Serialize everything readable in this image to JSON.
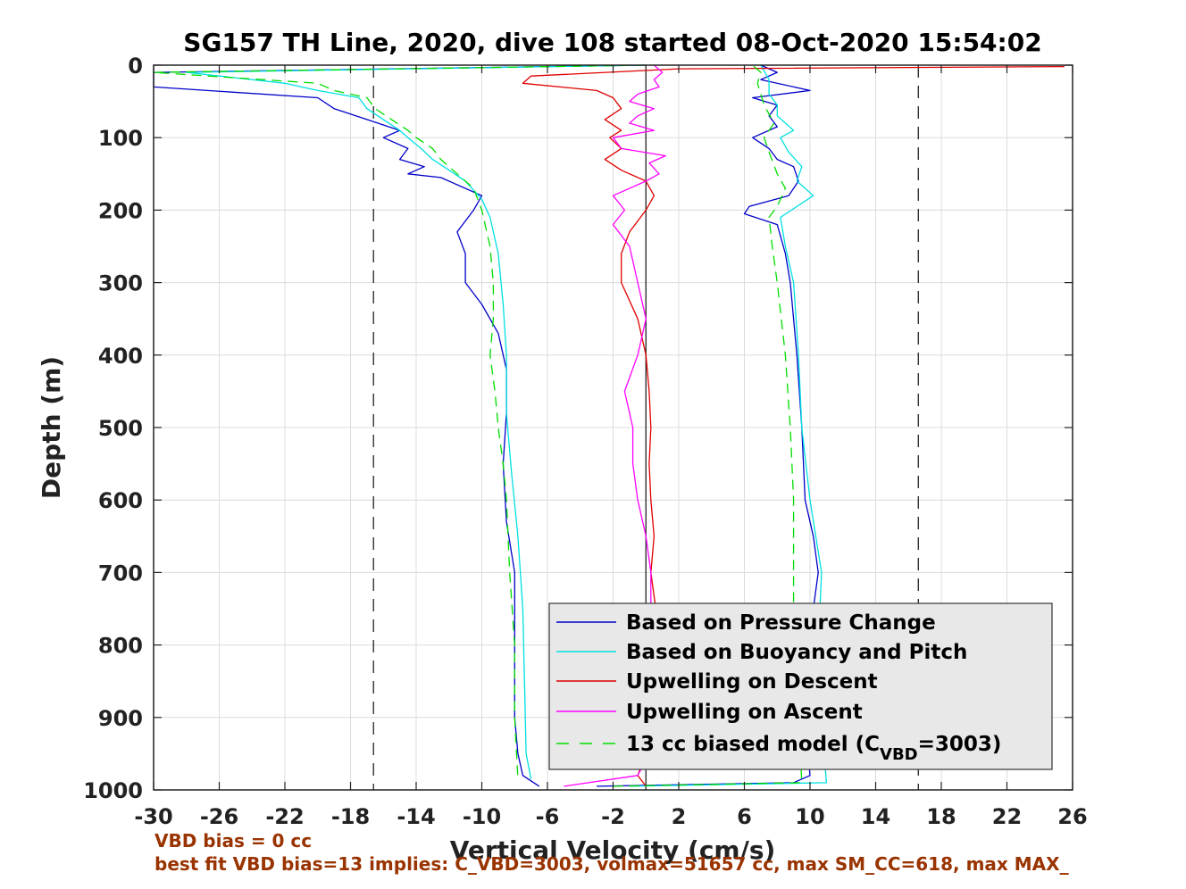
{
  "chart_data": {
    "type": "line",
    "title": "SG157 TH Line, 2020, dive 108 started 08-Oct-2020 15:54:02",
    "xlabel": "Vertical Velocity (cm/s)",
    "ylabel": "Depth (m)",
    "xlim": [
      -30,
      26
    ],
    "ylim": [
      0,
      1000
    ],
    "y_reversed": true,
    "grid": true,
    "legend_position": "bottom-right",
    "x_ticks": [
      "-30",
      "-26",
      "-22",
      "-18",
      "-14",
      "-10",
      "-6",
      "-2",
      "2",
      "6",
      "10",
      "14",
      "18",
      "22",
      "26"
    ],
    "y_ticks": [
      "0",
      "100",
      "200",
      "300",
      "400",
      "500",
      "600",
      "700",
      "800",
      "900",
      "1000"
    ],
    "reference_lines": [
      {
        "style": "dashed",
        "x": -16.6
      },
      {
        "style": "solid",
        "x": 0
      },
      {
        "style": "dashed",
        "x": 16.6
      }
    ],
    "series": [
      {
        "name": "Based on Pressure Change",
        "color": "#0000c8",
        "style": "solid",
        "descent": [
          [
            0,
            0
          ],
          [
            10,
            -30
          ],
          [
            30,
            -30
          ],
          [
            45,
            -20
          ],
          [
            60,
            -19
          ],
          [
            75,
            -17
          ],
          [
            90,
            -15
          ],
          [
            100,
            -16
          ],
          [
            115,
            -14.5
          ],
          [
            130,
            -15
          ],
          [
            140,
            -13.5
          ],
          [
            150,
            -14.5
          ],
          [
            155,
            -12.5
          ],
          [
            165,
            -11.5
          ],
          [
            180,
            -10
          ],
          [
            200,
            -10.5
          ],
          [
            230,
            -11.5
          ],
          [
            260,
            -11
          ],
          [
            300,
            -11
          ],
          [
            330,
            -10
          ],
          [
            370,
            -9
          ],
          [
            420,
            -8.5
          ],
          [
            480,
            -8.5
          ],
          [
            550,
            -8.7
          ],
          [
            630,
            -8.5
          ],
          [
            700,
            -8
          ],
          [
            800,
            -8
          ],
          [
            900,
            -8
          ],
          [
            950,
            -7.8
          ],
          [
            980,
            -7.5
          ],
          [
            995,
            -6.5
          ]
        ],
        "ascent": [
          [
            995,
            -3
          ],
          [
            990,
            9
          ],
          [
            980,
            10
          ],
          [
            900,
            9.7
          ],
          [
            800,
            9.5
          ],
          [
            750,
            10.2
          ],
          [
            700,
            10.5
          ],
          [
            650,
            10.2
          ],
          [
            600,
            9.7
          ],
          [
            500,
            9.5
          ],
          [
            400,
            9.2
          ],
          [
            300,
            8.8
          ],
          [
            260,
            8.5
          ],
          [
            220,
            8
          ],
          [
            205,
            6
          ],
          [
            195,
            6.3
          ],
          [
            180,
            8.7
          ],
          [
            160,
            9.3
          ],
          [
            140,
            9
          ],
          [
            130,
            8
          ],
          [
            115,
            7.5
          ],
          [
            100,
            6.5
          ],
          [
            85,
            8
          ],
          [
            70,
            7.5
          ],
          [
            55,
            8
          ],
          [
            45,
            6.5
          ],
          [
            35,
            10
          ],
          [
            20,
            7
          ],
          [
            10,
            8
          ],
          [
            0,
            7
          ]
        ]
      },
      {
        "name": "Based on Buoyancy and Pitch",
        "color": "#00e0e0",
        "style": "solid",
        "descent": [
          [
            0,
            0
          ],
          [
            10,
            -28
          ],
          [
            25,
            -22
          ],
          [
            35,
            -20
          ],
          [
            45,
            -17.5
          ],
          [
            60,
            -17
          ],
          [
            75,
            -16
          ],
          [
            90,
            -15
          ],
          [
            100,
            -14.5
          ],
          [
            115,
            -13.7
          ],
          [
            130,
            -13
          ],
          [
            145,
            -12
          ],
          [
            160,
            -11
          ],
          [
            185,
            -10
          ],
          [
            210,
            -9.5
          ],
          [
            260,
            -9
          ],
          [
            330,
            -8.7
          ],
          [
            400,
            -8.5
          ],
          [
            480,
            -8.5
          ],
          [
            560,
            -8.2
          ],
          [
            650,
            -7.8
          ],
          [
            750,
            -7.5
          ],
          [
            850,
            -7.4
          ],
          [
            950,
            -7.3
          ],
          [
            985,
            -7
          ]
        ],
        "ascent": [
          [
            995,
            -1
          ],
          [
            990,
            11
          ],
          [
            900,
            10.7
          ],
          [
            800,
            10.5
          ],
          [
            700,
            10.7
          ],
          [
            600,
            10
          ],
          [
            500,
            9.5
          ],
          [
            400,
            9.3
          ],
          [
            300,
            9
          ],
          [
            250,
            8.5
          ],
          [
            210,
            8.2
          ],
          [
            180,
            10.2
          ],
          [
            160,
            9.2
          ],
          [
            140,
            9.5
          ],
          [
            120,
            8.7
          ],
          [
            100,
            8.2
          ],
          [
            90,
            9
          ],
          [
            70,
            8
          ],
          [
            55,
            8
          ],
          [
            40,
            7.5
          ],
          [
            20,
            7.5
          ],
          [
            0,
            7
          ]
        ]
      },
      {
        "name": "Upwelling on Descent",
        "color": "#e00000",
        "style": "solid",
        "descent": [
          [
            2,
            25.5
          ],
          [
            5,
            2
          ],
          [
            15,
            -7
          ],
          [
            25,
            -7.5
          ],
          [
            35,
            -3
          ],
          [
            45,
            -2
          ],
          [
            60,
            -1.5
          ],
          [
            75,
            -2.5
          ],
          [
            90,
            -1.5
          ],
          [
            100,
            -2.2
          ],
          [
            115,
            -1.5
          ],
          [
            130,
            -2.5
          ],
          [
            145,
            -1.5
          ],
          [
            160,
            0
          ],
          [
            180,
            0.5
          ],
          [
            200,
            0
          ],
          [
            230,
            -1
          ],
          [
            260,
            -1.5
          ],
          [
            300,
            -1.5
          ],
          [
            350,
            -0.5
          ],
          [
            400,
            0
          ],
          [
            450,
            0.2
          ],
          [
            500,
            0.3
          ],
          [
            550,
            0.2
          ],
          [
            600,
            0.3
          ],
          [
            650,
            0.5
          ],
          [
            700,
            0.3
          ],
          [
            750,
            0.6
          ],
          [
            800,
            0.3
          ],
          [
            850,
            0.2
          ],
          [
            900,
            0
          ],
          [
            950,
            0
          ],
          [
            980,
            -0.5
          ],
          [
            995,
            0
          ]
        ]
      },
      {
        "name": "Upwelling on Ascent",
        "color": "#ff00ff",
        "style": "solid",
        "ascent": [
          [
            995,
            -5
          ],
          [
            980,
            -0.5
          ],
          [
            950,
            0.2
          ],
          [
            900,
            0.3
          ],
          [
            850,
            0.4
          ],
          [
            800,
            0.2
          ],
          [
            750,
            0.3
          ],
          [
            700,
            0.3
          ],
          [
            650,
            0
          ],
          [
            600,
            -0.5
          ],
          [
            550,
            -0.8
          ],
          [
            500,
            -0.8
          ],
          [
            450,
            -1.3
          ],
          [
            400,
            -0.5
          ],
          [
            350,
            0
          ],
          [
            300,
            -0.5
          ],
          [
            250,
            -1
          ],
          [
            220,
            -2
          ],
          [
            200,
            -1.3
          ],
          [
            180,
            -2
          ],
          [
            160,
            0
          ],
          [
            150,
            0.8
          ],
          [
            135,
            0.2
          ],
          [
            125,
            1.2
          ],
          [
            115,
            -1.5
          ],
          [
            100,
            -2
          ],
          [
            90,
            0.5
          ],
          [
            80,
            -1
          ],
          [
            70,
            -0.5
          ],
          [
            60,
            0.5
          ],
          [
            50,
            -1
          ],
          [
            40,
            -0.5
          ],
          [
            30,
            0.8
          ],
          [
            20,
            0.5
          ],
          [
            10,
            1
          ],
          [
            0,
            0.5
          ]
        ]
      },
      {
        "name": "13 cc biased model (C",
        "name_sub": "VBD",
        "name_tail": "=3003)",
        "color": "#00dd00",
        "style": "dashed",
        "descent": [
          [
            0,
            0
          ],
          [
            10,
            -30
          ],
          [
            25,
            -20
          ],
          [
            35,
            -19
          ],
          [
            45,
            -17
          ],
          [
            60,
            -16.5
          ],
          [
            75,
            -15.5
          ],
          [
            90,
            -14.5
          ],
          [
            100,
            -14
          ],
          [
            115,
            -13
          ],
          [
            130,
            -12.5
          ],
          [
            150,
            -11.5
          ],
          [
            170,
            -10.5
          ],
          [
            200,
            -10
          ],
          [
            250,
            -9.5
          ],
          [
            300,
            -9.3
          ],
          [
            350,
            -9.3
          ],
          [
            400,
            -9.5
          ],
          [
            450,
            -9.2
          ],
          [
            500,
            -9
          ],
          [
            550,
            -8.7
          ],
          [
            600,
            -8.5
          ],
          [
            700,
            -8.3
          ],
          [
            800,
            -8
          ],
          [
            900,
            -8
          ],
          [
            985,
            -7.8
          ]
        ],
        "ascent": [
          [
            995,
            -2
          ],
          [
            990,
            9.5
          ],
          [
            900,
            9.3
          ],
          [
            800,
            9
          ],
          [
            700,
            9
          ],
          [
            600,
            9
          ],
          [
            500,
            8.8
          ],
          [
            400,
            8.5
          ],
          [
            300,
            8
          ],
          [
            250,
            7.7
          ],
          [
            210,
            7.5
          ],
          [
            195,
            8
          ],
          [
            170,
            8.5
          ],
          [
            150,
            8
          ],
          [
            120,
            7.5
          ],
          [
            100,
            7.2
          ],
          [
            80,
            7.8
          ],
          [
            55,
            7.2
          ],
          [
            40,
            7
          ],
          [
            25,
            6.8
          ],
          [
            10,
            7
          ],
          [
            0,
            6.5
          ]
        ]
      }
    ]
  },
  "footnotes": {
    "line1": "VBD bias = 0 cc",
    "line2": "best fit VBD bias=13 implies: C_VBD=3003, volmax=51657 cc, max SM_CC=618, max MAX_"
  }
}
